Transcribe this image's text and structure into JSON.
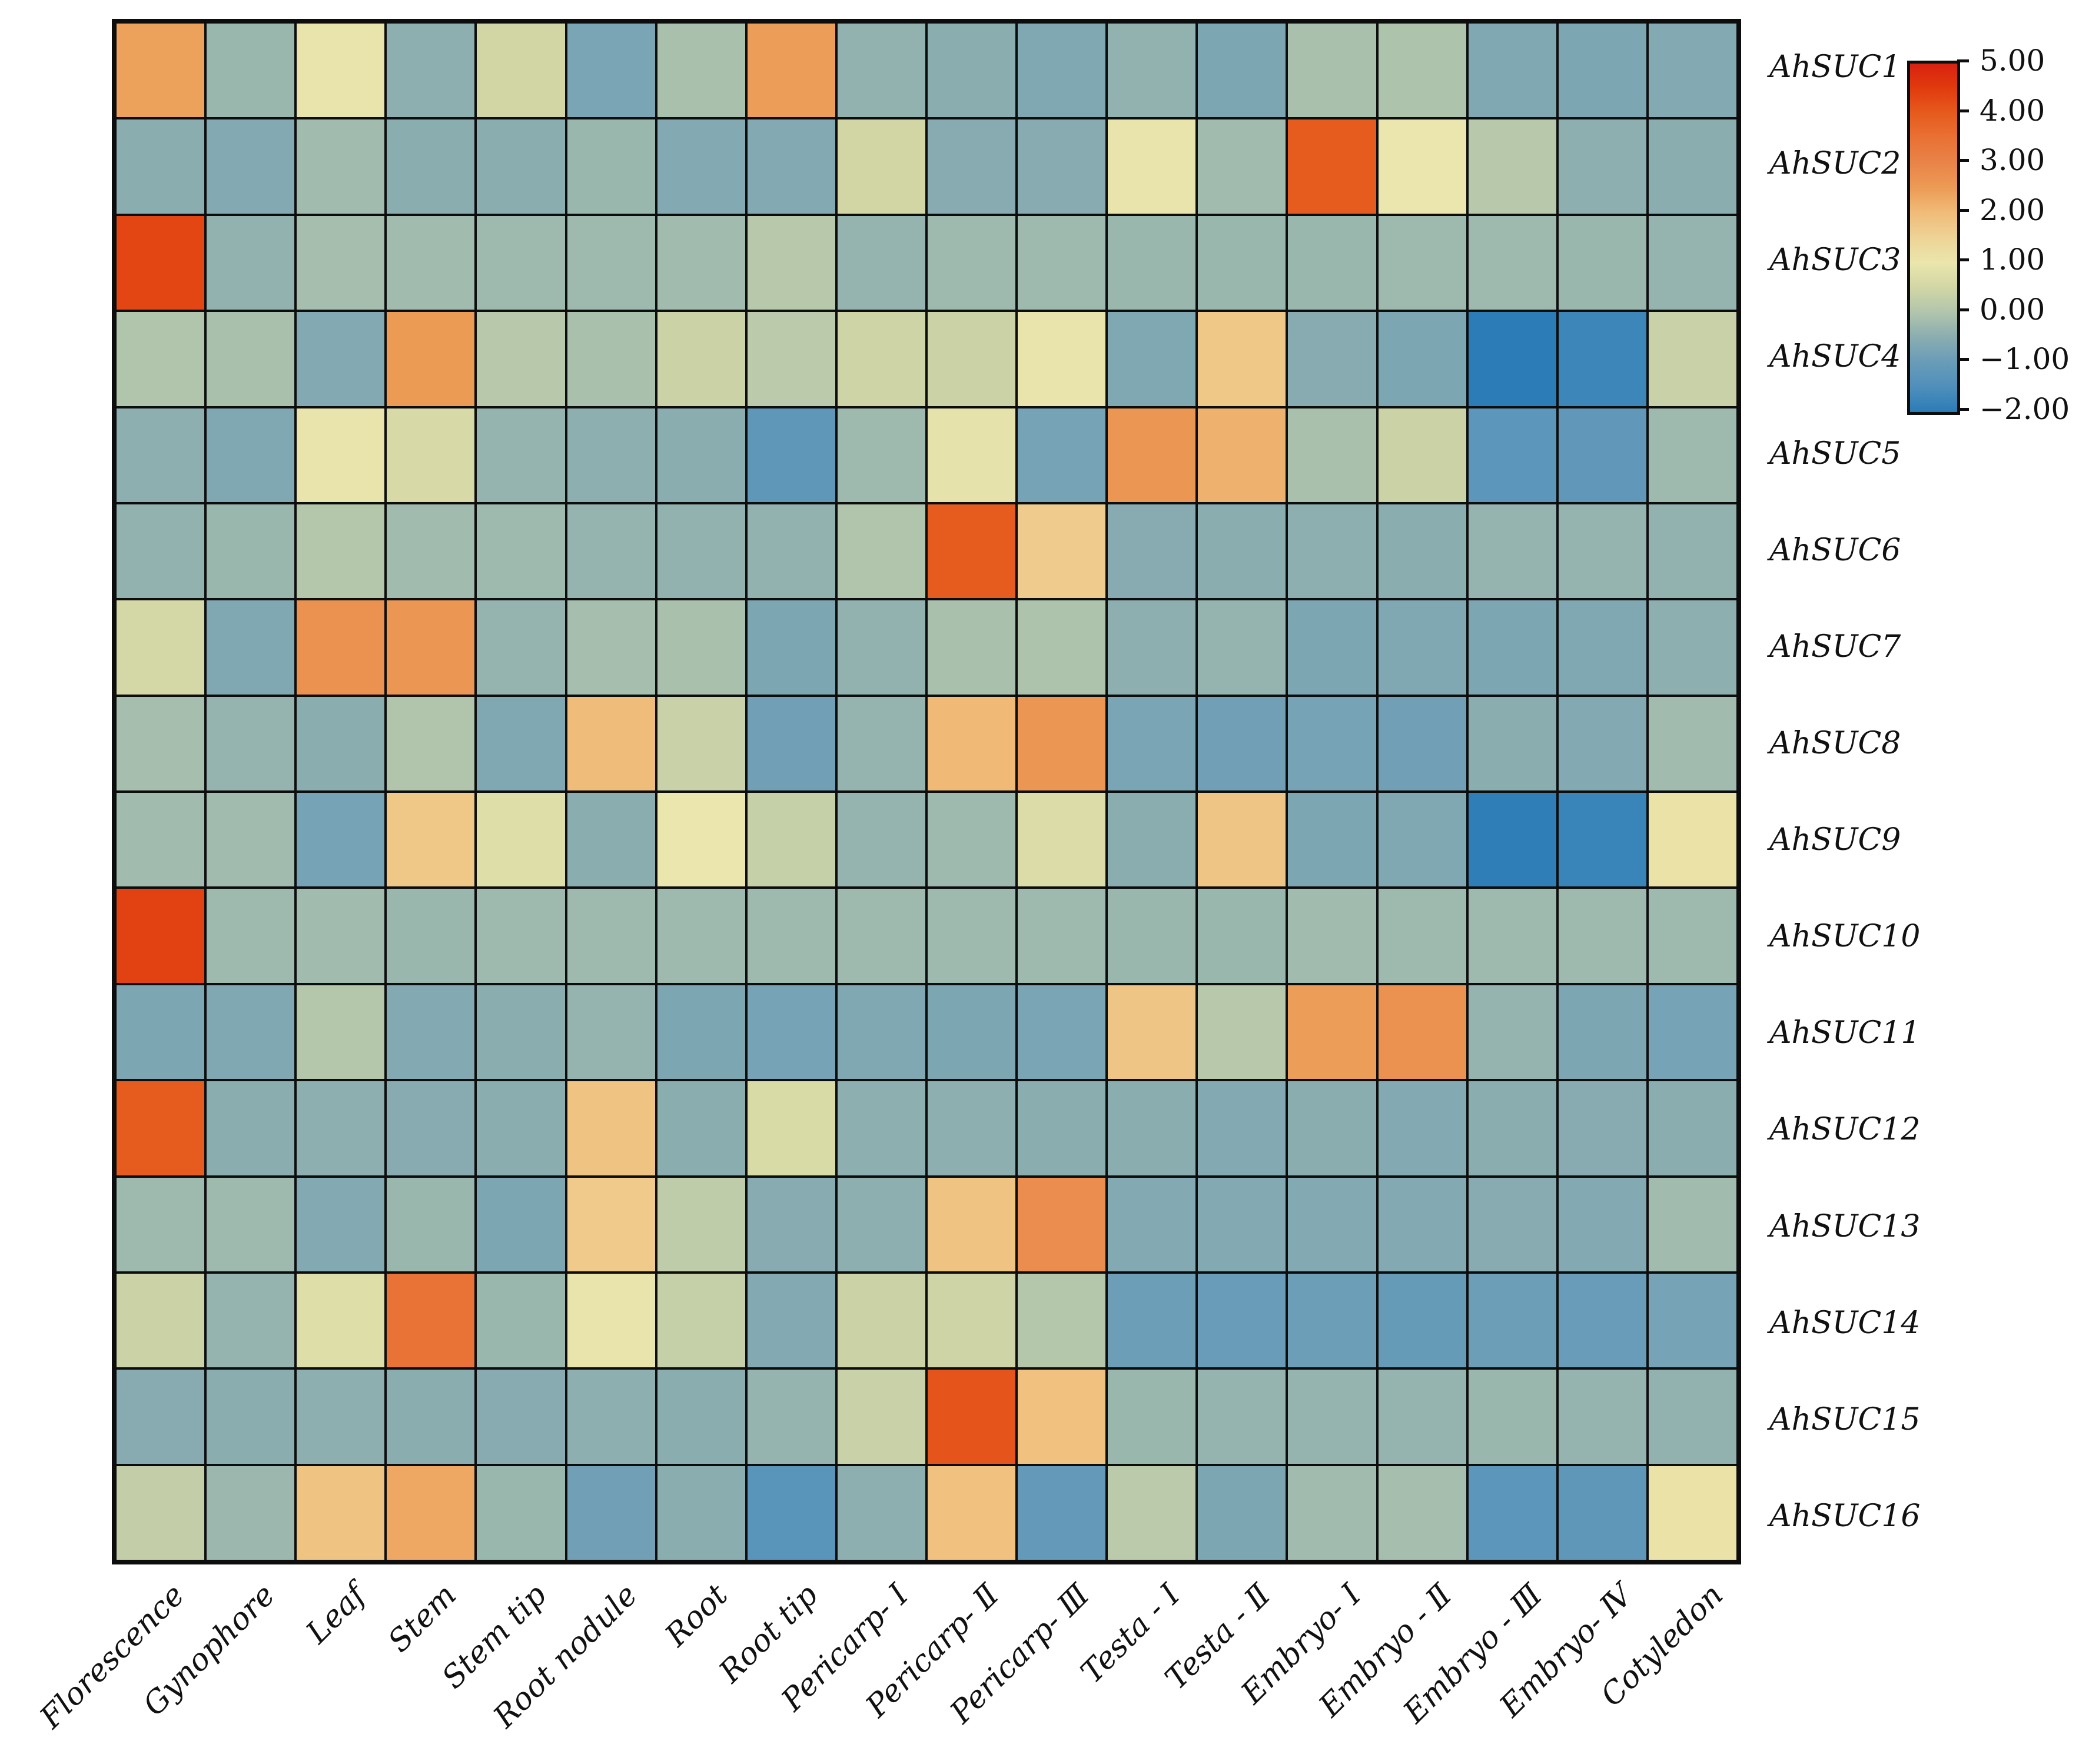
{
  "chart_data": {
    "type": "heatmap",
    "title": "",
    "xlabel": "",
    "ylabel": "",
    "grid": true,
    "grid_line_color": "#0d0d0d",
    "background_color": "#ffffff",
    "legend_position": "right",
    "rows": [
      "AhSUC1",
      "AhSUC2",
      "AhSUC3",
      "AhSUC4",
      "AhSUC5",
      "AhSUC6",
      "AhSUC7",
      "AhSUC8",
      "AhSUC9",
      "AhSUC10",
      "AhSUC11",
      "AhSUC12",
      "AhSUC13",
      "AhSUC14",
      "AhSUC15",
      "AhSUC16"
    ],
    "columns": [
      "Florescence",
      "Gynophore",
      "Leaf",
      "Stem",
      "Stem tip",
      "Root nodule",
      "Root",
      "Root tip",
      "Pericarp- Ⅰ",
      "Pericarp- Ⅱ",
      "Pericarp- Ⅲ",
      "Testa - Ⅰ",
      "Testa - Ⅱ",
      "Embryo- Ⅰ",
      "Embryo - Ⅱ",
      "Embryo - Ⅲ",
      "Embryo- Ⅳ",
      "Cotyledon"
    ],
    "values": [
      [
        2.4,
        -0.3,
        0.95,
        -0.45,
        0.5,
        -0.75,
        -0.1,
        2.45,
        -0.4,
        -0.5,
        -0.65,
        -0.4,
        -0.7,
        -0.1,
        -0.05,
        -0.65,
        -0.7,
        -0.6
      ],
      [
        -0.5,
        -0.6,
        -0.2,
        -0.5,
        -0.5,
        -0.3,
        -0.6,
        -0.6,
        0.5,
        -0.55,
        -0.55,
        0.95,
        -0.2,
        4.0,
        1.0,
        0.1,
        -0.45,
        -0.5
      ],
      [
        4.35,
        -0.4,
        -0.15,
        -0.2,
        -0.25,
        -0.25,
        -0.2,
        0.1,
        -0.35,
        -0.25,
        -0.25,
        -0.3,
        -0.3,
        -0.3,
        -0.25,
        -0.25,
        -0.3,
        -0.35
      ],
      [
        0.0,
        -0.1,
        -0.6,
        2.5,
        0.1,
        -0.1,
        0.4,
        0.15,
        0.45,
        0.4,
        0.95,
        -0.65,
        1.75,
        -0.55,
        -0.7,
        -2.0,
        -1.75,
        0.35
      ],
      [
        -0.45,
        -0.65,
        0.95,
        0.6,
        -0.35,
        -0.45,
        -0.5,
        -1.2,
        -0.25,
        0.9,
        -0.8,
        2.6,
        2.15,
        -0.1,
        0.4,
        -1.25,
        -1.15,
        -0.25
      ],
      [
        -0.4,
        -0.3,
        0.05,
        -0.2,
        -0.25,
        -0.35,
        -0.4,
        -0.4,
        0.0,
        4.0,
        1.65,
        -0.55,
        -0.5,
        -0.45,
        -0.5,
        -0.35,
        -0.35,
        -0.4
      ],
      [
        0.55,
        -0.65,
        2.7,
        2.6,
        -0.35,
        -0.15,
        -0.1,
        -0.7,
        -0.4,
        -0.1,
        -0.05,
        -0.45,
        -0.35,
        -0.7,
        -0.65,
        -0.7,
        -0.65,
        -0.45
      ],
      [
        -0.15,
        -0.35,
        -0.5,
        0.0,
        -0.65,
        2.0,
        0.35,
        -0.9,
        -0.35,
        2.05,
        2.6,
        -0.75,
        -0.9,
        -0.8,
        -0.9,
        -0.5,
        -0.6,
        -0.2
      ],
      [
        -0.2,
        -0.2,
        -0.8,
        1.75,
        0.75,
        -0.5,
        1.0,
        0.3,
        -0.35,
        -0.25,
        0.7,
        -0.5,
        1.8,
        -0.7,
        -0.65,
        -1.95,
        -1.8,
        1.1
      ],
      [
        4.4,
        -0.25,
        -0.2,
        -0.3,
        -0.25,
        -0.25,
        -0.25,
        -0.25,
        -0.25,
        -0.25,
        -0.25,
        -0.3,
        -0.3,
        -0.2,
        -0.25,
        -0.25,
        -0.25,
        -0.25
      ],
      [
        -0.7,
        -0.65,
        0.05,
        -0.6,
        -0.5,
        -0.35,
        -0.7,
        -0.8,
        -0.65,
        -0.7,
        -0.75,
        1.8,
        0.1,
        2.45,
        2.7,
        -0.35,
        -0.7,
        -0.8
      ],
      [
        4.0,
        -0.5,
        -0.45,
        -0.55,
        -0.5,
        1.85,
        -0.5,
        0.65,
        -0.45,
        -0.45,
        -0.5,
        -0.5,
        -0.6,
        -0.5,
        -0.6,
        -0.5,
        -0.55,
        -0.5
      ],
      [
        -0.25,
        -0.25,
        -0.6,
        -0.3,
        -0.7,
        1.7,
        0.2,
        -0.55,
        -0.45,
        1.85,
        2.8,
        -0.6,
        -0.6,
        -0.6,
        -0.6,
        -0.55,
        -0.6,
        -0.2
      ],
      [
        0.4,
        -0.35,
        0.75,
        3.45,
        -0.3,
        0.95,
        0.3,
        -0.6,
        0.4,
        0.45,
        0.05,
        -0.95,
        -1.0,
        -0.95,
        -1.05,
        -0.95,
        -1.0,
        -0.8
      ],
      [
        -0.55,
        -0.5,
        -0.45,
        -0.5,
        -0.55,
        -0.45,
        -0.5,
        -0.35,
        0.35,
        4.1,
        1.9,
        -0.3,
        -0.35,
        -0.35,
        -0.35,
        -0.3,
        -0.35,
        -0.4
      ],
      [
        0.27,
        -0.27,
        1.85,
        2.3,
        -0.3,
        -0.9,
        -0.5,
        -1.3,
        -0.45,
        1.9,
        -1.1,
        0.15,
        -0.7,
        -0.2,
        -0.15,
        -1.25,
        -1.2,
        1.1
      ]
    ],
    "vmin": -2,
    "vmax": 5,
    "colorbar_tick_labels": [
      "5.00",
      "4.00",
      "3.00",
      "2.00",
      "1.00",
      "0.00",
      "−1.00",
      "−2.00"
    ],
    "colorbar_tick_values": [
      5,
      4,
      3,
      2,
      1,
      0,
      -1,
      -2
    ],
    "colormap_stops": [
      {
        "v": -2.0,
        "c": "#2b7cb7"
      },
      {
        "v": -1.5,
        "c": "#4f8fbb"
      },
      {
        "v": -1.0,
        "c": "#699cb8"
      },
      {
        "v": -0.5,
        "c": "#8aadb0"
      },
      {
        "v": 0.0,
        "c": "#b1c5ac"
      },
      {
        "v": 0.5,
        "c": "#d2d6a5"
      },
      {
        "v": 1.0,
        "c": "#eae6ad"
      },
      {
        "v": 1.5,
        "c": "#eed396"
      },
      {
        "v": 2.0,
        "c": "#f0bc79"
      },
      {
        "v": 2.5,
        "c": "#ec9b55"
      },
      {
        "v": 3.0,
        "c": "#e98449"
      },
      {
        "v": 3.5,
        "c": "#e97134"
      },
      {
        "v": 4.0,
        "c": "#e65b1e"
      },
      {
        "v": 4.5,
        "c": "#e13b0e"
      },
      {
        "v": 5.0,
        "c": "#d92110"
      }
    ]
  }
}
